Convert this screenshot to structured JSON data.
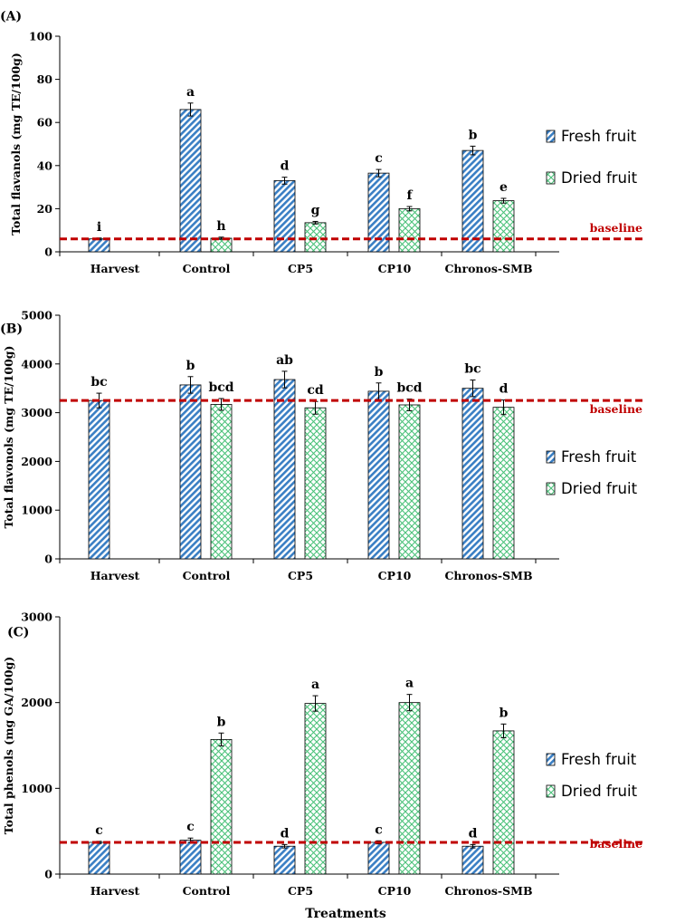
{
  "colors": {
    "fresh": "#3a7fc4",
    "dried": "#4bc27a",
    "baseline": "#c00000",
    "axis": "#000000"
  },
  "x_title": "Treatments",
  "chart_data": [
    {
      "type": "bar",
      "panel_label": "(A)",
      "ylabel": "Total flavanols (mg TE/100g)",
      "ylim": [
        0,
        100
      ],
      "yticks": [
        0,
        20,
        40,
        60,
        80,
        100
      ],
      "categories": [
        "Harvest",
        "Control",
        "CP5",
        "CP10",
        "Chronos-SMB"
      ],
      "series": [
        {
          "name": "Fresh fruit",
          "values": [
            6,
            66,
            33,
            36.5,
            47
          ],
          "errors": [
            0.4,
            3,
            1.6,
            1.7,
            2
          ],
          "letters": [
            "i",
            "a",
            "d",
            "c",
            "b"
          ]
        },
        {
          "name": "Dried fruit",
          "values": [
            null,
            6.3,
            13.5,
            20,
            23.7
          ],
          "errors": [
            null,
            0.5,
            0.6,
            1,
            1.1
          ],
          "letters": [
            null,
            "h",
            "g",
            "f",
            "e"
          ]
        }
      ],
      "baseline": {
        "value": 6,
        "label": "baseline"
      },
      "legend": [
        "Fresh fruit",
        "Dried fruit"
      ]
    },
    {
      "type": "bar",
      "panel_label": "(B)",
      "ylabel": "Total flavonols (mg TE/100g)",
      "ylim": [
        0,
        5000
      ],
      "yticks": [
        0,
        1000,
        2000,
        3000,
        4000,
        5000
      ],
      "categories": [
        "Harvest",
        "Control",
        "CP5",
        "CP10",
        "Chronos-SMB"
      ],
      "series": [
        {
          "name": "Fresh fruit",
          "values": [
            3250,
            3570,
            3680,
            3440,
            3500
          ],
          "errors": [
            150,
            170,
            170,
            170,
            170
          ],
          "letters": [
            "bc",
            "b",
            "ab",
            "b",
            "bc"
          ]
        },
        {
          "name": "Dried fruit",
          "values": [
            null,
            3170,
            3100,
            3160,
            3110
          ],
          "errors": [
            null,
            120,
            130,
            120,
            150
          ],
          "letters": [
            null,
            "bcd",
            "cd",
            "bcd",
            "d"
          ]
        }
      ],
      "baseline": {
        "value": 3250,
        "label": "baseline"
      },
      "legend": [
        "Fresh fruit",
        "Dried fruit"
      ]
    },
    {
      "type": "bar",
      "panel_label": "(C)",
      "ylabel": "Total phenols (mg GA/100g)",
      "ylim": [
        0,
        3000
      ],
      "yticks": [
        0,
        1000,
        2000,
        3000
      ],
      "categories": [
        "Harvest",
        "Control",
        "CP5",
        "CP10",
        "Chronos-SMB"
      ],
      "series": [
        {
          "name": "Fresh fruit",
          "values": [
            370,
            395,
            325,
            370,
            325
          ],
          "errors": [
            12,
            25,
            20,
            18,
            20
          ],
          "letters": [
            "c",
            "c",
            "d",
            "c",
            "d"
          ]
        },
        {
          "name": "Dried fruit",
          "values": [
            null,
            1570,
            1990,
            2000,
            1670
          ],
          "errors": [
            null,
            75,
            90,
            95,
            80
          ],
          "letters": [
            null,
            "b",
            "a",
            "a",
            "b"
          ]
        }
      ],
      "baseline": {
        "value": 370,
        "label": "baseline"
      },
      "legend": [
        "Fresh fruit",
        "Dried fruit"
      ]
    }
  ]
}
